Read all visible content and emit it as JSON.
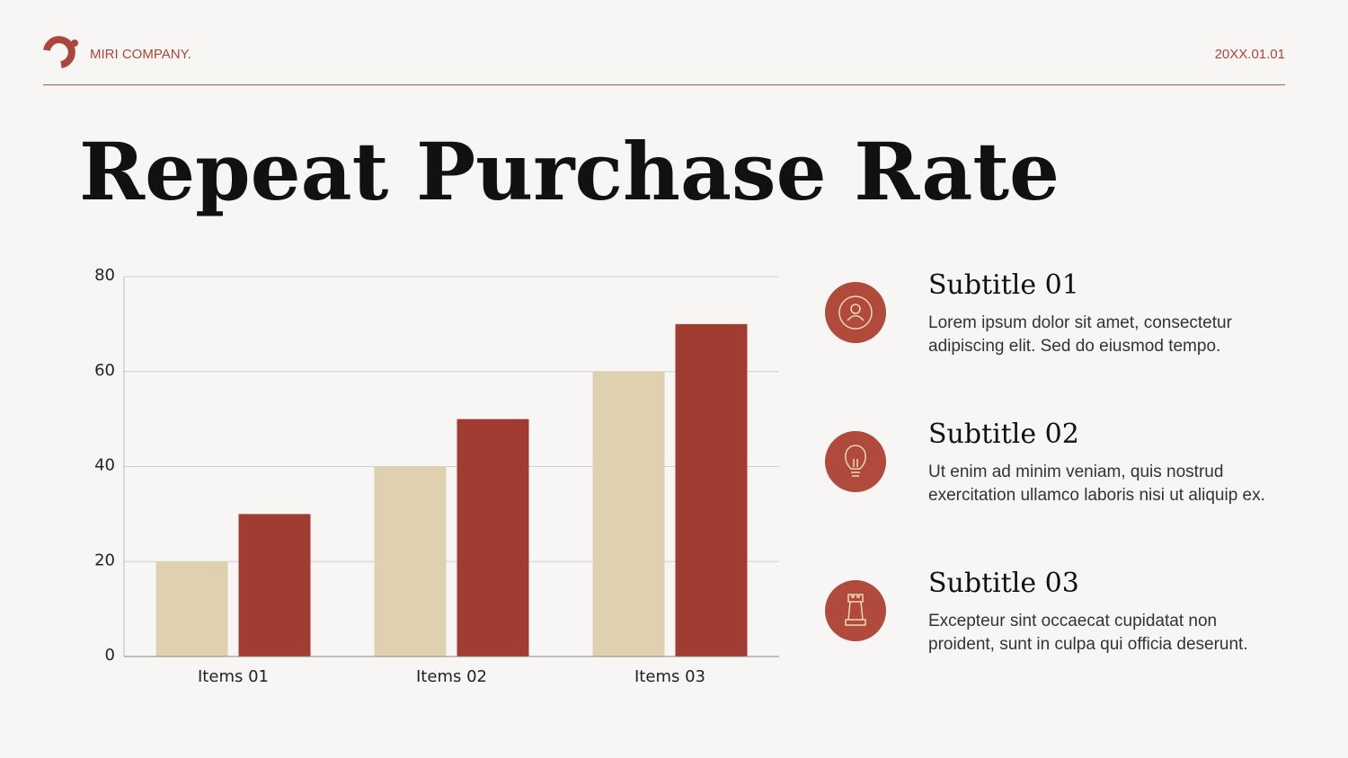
{
  "header": {
    "company": "MIRI COMPANY.",
    "date": "20XX.01.01"
  },
  "title": "Repeat Purchase Rate",
  "chart_data": {
    "type": "bar",
    "categories": [
      "Items 01",
      "Items 02",
      "Items 03"
    ],
    "series": [
      {
        "color": "#dfd0b0",
        "values": [
          20,
          40,
          60
        ]
      },
      {
        "color": "#a03c32",
        "values": [
          30,
          50,
          70
        ]
      }
    ],
    "ylim": [
      0,
      80
    ],
    "yticks": [
      0,
      20,
      40,
      60,
      80
    ],
    "grid": true
  },
  "items": [
    {
      "subtitle": "Subtitle 01",
      "lines": [
        "Lorem ipsum dolor sit amet, consectetur",
        "adipiscing elit. Sed do eiusmod tempo."
      ]
    },
    {
      "subtitle": "Subtitle 02",
      "lines": [
        "Ut enim ad minim veniam, quis nostrud",
        "exercitation ullamco laboris nisi ut aliquip ex."
      ]
    },
    {
      "subtitle": "Subtitle 03",
      "lines": [
        "Excepteur sint occaecat cupidatat non",
        "proident, sunt in culpa qui officia deserunt."
      ]
    }
  ]
}
